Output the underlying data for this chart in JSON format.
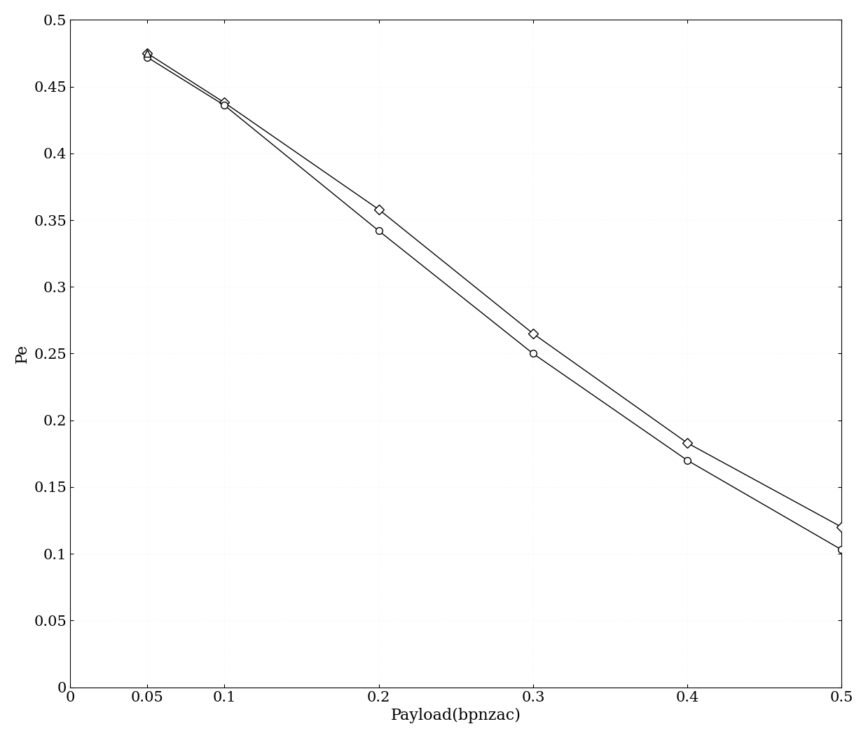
{
  "x": [
    0.05,
    0.1,
    0.2,
    0.3,
    0.4,
    0.5
  ],
  "line1_y": [
    0.475,
    0.438,
    0.358,
    0.265,
    0.183,
    0.12
  ],
  "line2_y": [
    0.472,
    0.436,
    0.342,
    0.25,
    0.17,
    0.103
  ],
  "line1_marker": "D",
  "line2_marker": "o",
  "line_color": "black",
  "line_width": 1.0,
  "marker_size": 7,
  "xlabel": "Payload(bpnzac)",
  "ylabel": "Pe",
  "xlim": [
    0,
    0.5
  ],
  "ylim": [
    0,
    0.5
  ],
  "xticks": [
    0,
    0.05,
    0.1,
    0.2,
    0.3,
    0.4,
    0.5
  ],
  "yticks": [
    0,
    0.05,
    0.1,
    0.15,
    0.2,
    0.25,
    0.3,
    0.35,
    0.4,
    0.45,
    0.5
  ],
  "background_color": "#ffffff",
  "tick_labelsize": 15,
  "axis_labelsize": 16,
  "figsize": [
    12.39,
    10.53
  ],
  "dpi": 100
}
